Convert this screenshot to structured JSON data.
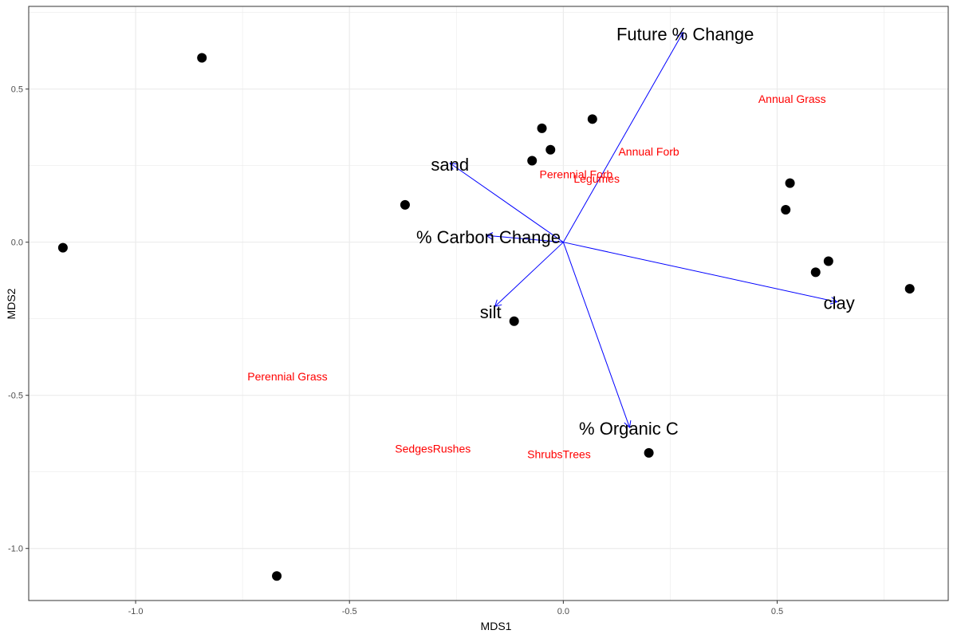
{
  "chart_data": {
    "type": "scatter",
    "xlabel": "MDS1",
    "ylabel": "MDS2",
    "xlim": [
      -1.25,
      0.9
    ],
    "ylim": [
      -1.17,
      0.77
    ],
    "x_ticks": [
      -1.0,
      -0.5,
      0.0,
      0.5
    ],
    "x_tick_labels": [
      "-1.0",
      "-0.5",
      "0.0",
      "0.5"
    ],
    "y_ticks": [
      -1.0,
      -0.5,
      0.0,
      0.5
    ],
    "y_tick_labels": [
      "-1.0",
      "-0.5",
      "0.0",
      "0.5"
    ],
    "grid": true,
    "colors": {
      "points": "#000000",
      "species": "#ff0000",
      "vectors": "#0000ff",
      "grid": "#ebebeb"
    },
    "sites": [
      {
        "x": -0.845,
        "y": 0.602
      },
      {
        "x": -1.17,
        "y": -0.018
      },
      {
        "x": -0.67,
        "y": -1.09
      },
      {
        "x": -0.37,
        "y": 0.122
      },
      {
        "x": -0.05,
        "y": 0.372
      },
      {
        "x": 0.068,
        "y": 0.402
      },
      {
        "x": -0.03,
        "y": 0.302
      },
      {
        "x": -0.073,
        "y": 0.266
      },
      {
        "x": -0.115,
        "y": -0.258
      },
      {
        "x": 0.2,
        "y": -0.688
      },
      {
        "x": 0.53,
        "y": 0.193
      },
      {
        "x": 0.52,
        "y": 0.106
      },
      {
        "x": 0.62,
        "y": -0.062
      },
      {
        "x": 0.59,
        "y": -0.098
      },
      {
        "x": 0.81,
        "y": -0.152
      }
    ],
    "species": [
      {
        "label": "Annual Grass",
        "x": 0.535,
        "y": 0.468
      },
      {
        "label": "Annual Forb",
        "x": 0.2,
        "y": 0.296
      },
      {
        "label": "Perennial Forb",
        "x": 0.03,
        "y": 0.222
      },
      {
        "label": "Legumes",
        "x": 0.078,
        "y": 0.208
      },
      {
        "label": "Perennial Grass",
        "x": -0.645,
        "y": -0.438
      },
      {
        "label": "SedgesRushes",
        "x": -0.305,
        "y": -0.674
      },
      {
        "label": "ShrubsTrees",
        "x": -0.01,
        "y": -0.692
      }
    ],
    "vectors": [
      {
        "label": "Future % Change",
        "x": 0.28,
        "y": 0.685,
        "lx": 0.285,
        "ly": 0.68
      },
      {
        "label": "sand",
        "x": -0.265,
        "y": 0.258,
        "lx": -0.265,
        "ly": 0.255
      },
      {
        "label": "% Carbon Change",
        "x": -0.18,
        "y": 0.022,
        "lx": -0.175,
        "ly": 0.017
      },
      {
        "label": "silt",
        "x": -0.16,
        "y": -0.21,
        "lx": -0.17,
        "ly": -0.227
      },
      {
        "label": "clay",
        "x": 0.64,
        "y": -0.195,
        "lx": 0.645,
        "ly": -0.198
      },
      {
        "label": "% Organic C",
        "x": 0.155,
        "y": -0.605,
        "lx": 0.153,
        "ly": -0.608
      }
    ]
  }
}
